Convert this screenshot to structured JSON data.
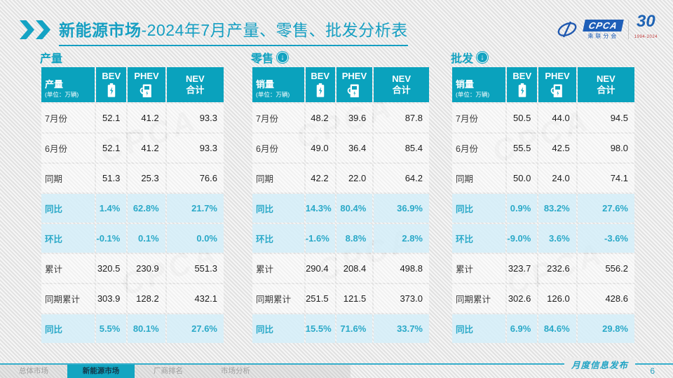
{
  "header": {
    "title_strong": "新能源市场",
    "title_rest": "-2024年7月产量、零售、批发分析表",
    "logo_cpca": "CPCA",
    "logo_cpca_sub": "乘联分会",
    "logo_30": "30",
    "logo_30_sub": "1994-2024"
  },
  "watermark": "CPCA",
  "table_columns": {
    "bev": "BEV",
    "phev": "PHEV",
    "nev_line1": "NEV",
    "nev_line2": "合计"
  },
  "unit_label": "(单位：万辆)",
  "tables": [
    {
      "section_title": "产量",
      "corner_label": "产量",
      "rows": [
        {
          "label": "7月份",
          "values": [
            "52.1",
            "41.2",
            "93.3"
          ],
          "highlight": false
        },
        {
          "label": "6月份",
          "values": [
            "52.1",
            "41.2",
            "93.3"
          ],
          "highlight": false
        },
        {
          "label": "同期",
          "values": [
            "51.3",
            "25.3",
            "76.6"
          ],
          "highlight": false
        },
        {
          "label": "同比",
          "values": [
            "1.4%",
            "62.8%",
            "21.7%"
          ],
          "highlight": true
        },
        {
          "label": "环比",
          "values": [
            "-0.1%",
            "0.1%",
            "0.0%"
          ],
          "highlight": true
        },
        {
          "label": "累计",
          "values": [
            "320.5",
            "230.9",
            "551.3"
          ],
          "highlight": false
        },
        {
          "label": "同期累计",
          "values": [
            "303.9",
            "128.2",
            "432.1"
          ],
          "highlight": false
        },
        {
          "label": "同比",
          "values": [
            "5.5%",
            "80.1%",
            "27.6%"
          ],
          "highlight": true
        }
      ]
    },
    {
      "section_title": "零售",
      "corner_label": "销量",
      "rows": [
        {
          "label": "7月份",
          "values": [
            "48.2",
            "39.6",
            "87.8"
          ],
          "highlight": false
        },
        {
          "label": "6月份",
          "values": [
            "49.0",
            "36.4",
            "85.4"
          ],
          "highlight": false
        },
        {
          "label": "同期",
          "values": [
            "42.2",
            "22.0",
            "64.2"
          ],
          "highlight": false
        },
        {
          "label": "同比",
          "values": [
            "14.3%",
            "80.4%",
            "36.9%"
          ],
          "highlight": true
        },
        {
          "label": "环比",
          "values": [
            "-1.6%",
            "8.8%",
            "2.8%"
          ],
          "highlight": true
        },
        {
          "label": "累计",
          "values": [
            "290.4",
            "208.4",
            "498.8"
          ],
          "highlight": false
        },
        {
          "label": "同期累计",
          "values": [
            "251.5",
            "121.5",
            "373.0"
          ],
          "highlight": false
        },
        {
          "label": "同比",
          "values": [
            "15.5%",
            "71.6%",
            "33.7%"
          ],
          "highlight": true
        }
      ]
    },
    {
      "section_title": "批发",
      "corner_label": "销量",
      "rows": [
        {
          "label": "7月份",
          "values": [
            "50.5",
            "44.0",
            "94.5"
          ],
          "highlight": false
        },
        {
          "label": "6月份",
          "values": [
            "55.5",
            "42.5",
            "98.0"
          ],
          "highlight": false
        },
        {
          "label": "同期",
          "values": [
            "50.0",
            "24.0",
            "74.1"
          ],
          "highlight": false
        },
        {
          "label": "同比",
          "values": [
            "0.9%",
            "83.2%",
            "27.6%"
          ],
          "highlight": true
        },
        {
          "label": "环比",
          "values": [
            "-9.0%",
            "3.6%",
            "-3.6%"
          ],
          "highlight": true
        },
        {
          "label": "累计",
          "values": [
            "323.7",
            "232.6",
            "556.2"
          ],
          "highlight": false
        },
        {
          "label": "同期累计",
          "values": [
            "302.6",
            "126.0",
            "428.6"
          ],
          "highlight": false
        },
        {
          "label": "同比",
          "values": [
            "6.9%",
            "84.6%",
            "29.8%"
          ],
          "highlight": true
        }
      ]
    }
  ],
  "footer": {
    "tabs": [
      {
        "label": "总体市场",
        "active": false
      },
      {
        "label": "新能源市场",
        "active": true
      },
      {
        "label": "厂商排名",
        "active": false
      },
      {
        "label": "市场分析",
        "active": false
      }
    ],
    "publication": "月度信息发布",
    "page_number": "6"
  },
  "colors": {
    "accent": "#0aa2bd",
    "highlight_bg": "#d5eff9",
    "highlight_text": "#2aa9c8",
    "logo_blue": "#1f5fb8"
  }
}
